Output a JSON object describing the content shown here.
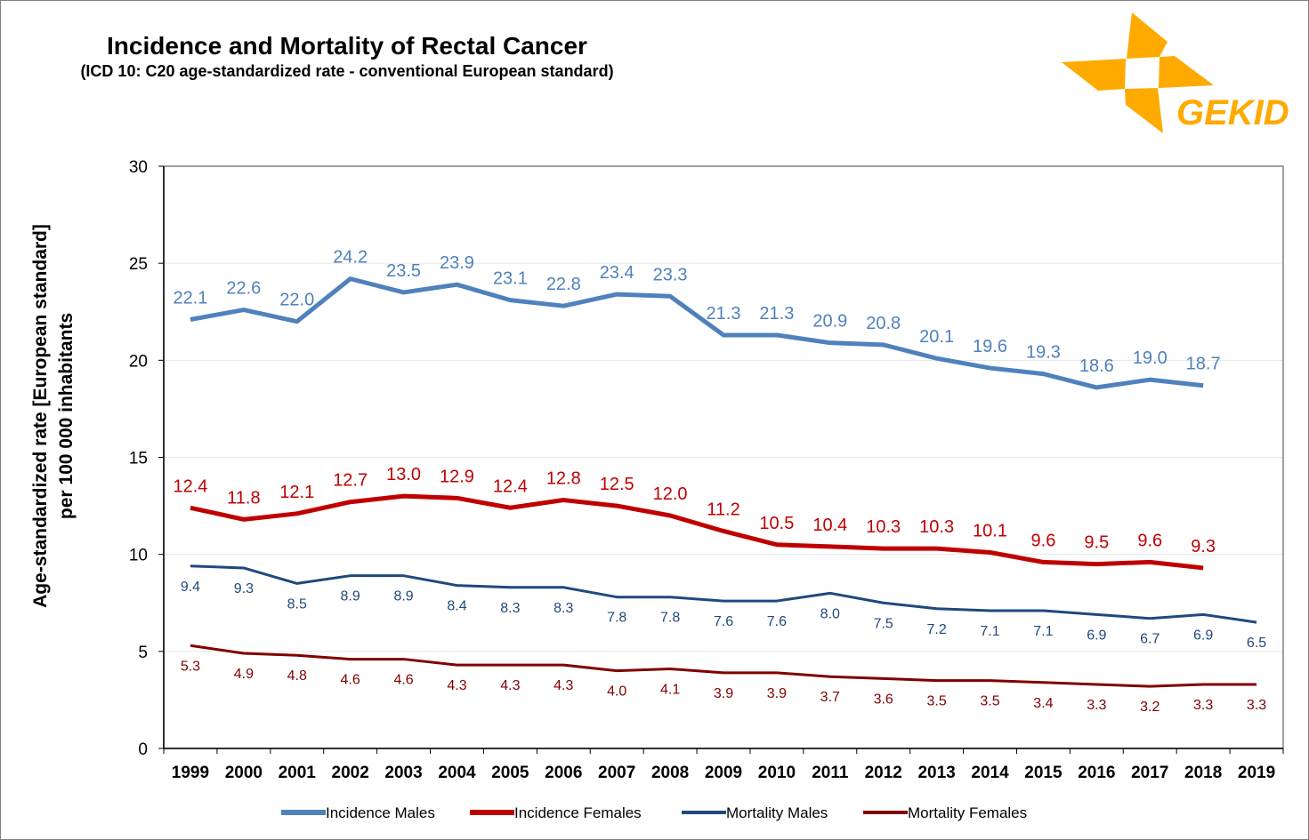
{
  "header": {
    "title": "Incidence and Mortality of Rectal Cancer",
    "subtitle": "(ICD 10: C20 age-standardized rate - conventional European standard)"
  },
  "logo": {
    "text": "GEKID",
    "color": "#FFAA00"
  },
  "chart_data": {
    "type": "line",
    "title": "Incidence and Mortality of Rectal Cancer",
    "subtitle": "(ICD 10: C20 age-standardized rate - conventional European standard)",
    "xlabel": "",
    "ylabel_line1": "Age-standardized rate [European standard]",
    "ylabel_line2": "per 100 000 inhabitants",
    "ylim": [
      0,
      30
    ],
    "yticks": [
      "0",
      "5",
      "10",
      "15",
      "20",
      "25",
      "30"
    ],
    "grid": true,
    "legend_position": "bottom",
    "categories": [
      "1999",
      "2000",
      "2001",
      "2002",
      "2003",
      "2004",
      "2005",
      "2006",
      "2007",
      "2008",
      "2009",
      "2010",
      "2011",
      "2012",
      "2013",
      "2014",
      "2015",
      "2016",
      "2017",
      "2018",
      "2019"
    ],
    "series": [
      {
        "name": "Incidence Males",
        "color": "#4F81BD",
        "label_color": "#4F81BD",
        "width": 5,
        "label_pos": "above",
        "values": [
          22.1,
          22.6,
          22.0,
          24.2,
          23.5,
          23.9,
          23.1,
          22.8,
          23.4,
          23.3,
          21.3,
          21.3,
          20.9,
          20.8,
          20.1,
          19.6,
          19.3,
          18.6,
          19.0,
          18.7,
          null
        ],
        "labels": [
          "22.1",
          "22.6",
          "22.0",
          "24.2",
          "23.5",
          "23.9",
          "23.1",
          "22.8",
          "23.4",
          "23.3",
          "21.3",
          "21.3",
          "20.9",
          "20.8",
          "20.1",
          "19.6",
          "19.3",
          "18.6",
          "19.0",
          "18.7",
          ""
        ]
      },
      {
        "name": "Incidence Females",
        "color": "#C00000",
        "label_color": "#C00000",
        "width": 5,
        "label_pos": "above",
        "values": [
          12.4,
          11.8,
          12.1,
          12.7,
          13.0,
          12.9,
          12.4,
          12.8,
          12.5,
          12.0,
          11.2,
          10.5,
          10.4,
          10.3,
          10.3,
          10.1,
          9.6,
          9.5,
          9.6,
          9.3,
          null
        ],
        "labels": [
          "12.4",
          "11.8",
          "12.1",
          "12.7",
          "13.0",
          "12.9",
          "12.4",
          "12.8",
          "12.5",
          "12.0",
          "11.2",
          "10.5",
          "10.4",
          "10.3",
          "10.3",
          "10.1",
          "9.6",
          "9.5",
          "9.6",
          "9.3",
          ""
        ]
      },
      {
        "name": "Mortality Males",
        "color": "#1F497D",
        "label_color": "#1F497D",
        "width": 3,
        "label_pos": "below",
        "values": [
          9.4,
          9.3,
          8.5,
          8.9,
          8.9,
          8.4,
          8.3,
          8.3,
          7.8,
          7.8,
          7.6,
          7.6,
          8.0,
          7.5,
          7.2,
          7.1,
          7.1,
          6.9,
          6.7,
          6.9,
          6.5
        ],
        "labels": [
          "9.4",
          "9.3",
          "8.5",
          "8.9",
          "8.9",
          "8.4",
          "8.3",
          "8.3",
          "7.8",
          "7.8",
          "7.6",
          "7.6",
          "8.0",
          "7.5",
          "7.2",
          "7.1",
          "7.1",
          "6.9",
          "6.7",
          "6.9",
          "6.5"
        ]
      },
      {
        "name": "Mortality Females",
        "color": "#800000",
        "label_color": "#800000",
        "width": 3,
        "label_pos": "below",
        "values": [
          5.3,
          4.9,
          4.8,
          4.6,
          4.6,
          4.3,
          4.3,
          4.3,
          4.0,
          4.1,
          3.9,
          3.9,
          3.7,
          3.6,
          3.5,
          3.5,
          3.4,
          3.3,
          3.2,
          3.3,
          3.3
        ],
        "labels": [
          "5.3",
          "4.9",
          "4.8",
          "4.6",
          "4.6",
          "4.3",
          "4.3",
          "4.3",
          "4.0",
          "4.1",
          "3.9",
          "3.9",
          "3.7",
          "3.6",
          "3.5",
          "3.5",
          "3.4",
          "3.3",
          "3.2",
          "3.3",
          "3.3"
        ]
      }
    ]
  }
}
